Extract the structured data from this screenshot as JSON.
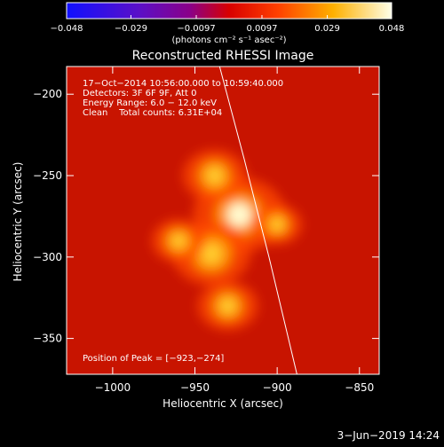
{
  "colorbar": {
    "ticks": [
      {
        "value": -0.048,
        "label": "−0.048"
      },
      {
        "value": -0.029,
        "label": "−0.029"
      },
      {
        "value": -0.0097,
        "label": "−0.0097"
      },
      {
        "value": 0.0097,
        "label": "0.0097"
      },
      {
        "value": 0.029,
        "label": "0.029"
      },
      {
        "value": 0.048,
        "label": "0.048"
      }
    ],
    "range": [
      -0.048,
      0.048
    ],
    "units": "(photons cm⁻² s⁻¹ asec⁻²)"
  },
  "chart_data": {
    "type": "heatmap",
    "title": "Reconstructed RHESSI Image",
    "xlabel": "Heliocentric X (arcsec)",
    "ylabel": "Heliocentric Y (arcsec)",
    "xlim": [
      -1028,
      -838
    ],
    "ylim": [
      -372,
      -183
    ],
    "xticks": [
      {
        "value": -1000,
        "label": "−1000"
      },
      {
        "value": -950,
        "label": "−950"
      },
      {
        "value": -900,
        "label": "−900"
      },
      {
        "value": -850,
        "label": "−850"
      }
    ],
    "yticks": [
      {
        "value": -200,
        "label": "−200"
      },
      {
        "value": -250,
        "label": "−250"
      },
      {
        "value": -300,
        "label": "−300"
      },
      {
        "value": -350,
        "label": "−350"
      }
    ],
    "sources": [
      {
        "x": -923,
        "y": -274,
        "intensity": 1.0
      },
      {
        "x": -940,
        "y": -298,
        "intensity": 0.8
      },
      {
        "x": -938,
        "y": -250,
        "intensity": 0.6
      },
      {
        "x": -930,
        "y": -330,
        "intensity": 0.55
      },
      {
        "x": -960,
        "y": -290,
        "intensity": 0.45
      },
      {
        "x": -900,
        "y": -280,
        "intensity": 0.4
      }
    ],
    "limb": [
      {
        "x": -935,
        "y": -183
      },
      {
        "x": -920,
        "y": -240
      },
      {
        "x": -905,
        "y": -300
      },
      {
        "x": -888,
        "y": -372
      }
    ],
    "annotations": {
      "line1": "17−Oct−2014 10:56:00.000 to 10:59:40.000",
      "line2": "Detectors: 3F 6F 9F, Att 0",
      "line3": "Energy Range: 6.0 − 12.0 keV",
      "line4": "Clean    Total counts: 6.31E+04",
      "peak": "Position of Peak = [−923,−274]"
    }
  },
  "footer": {
    "date": "3−Jun−2019 14:24"
  }
}
